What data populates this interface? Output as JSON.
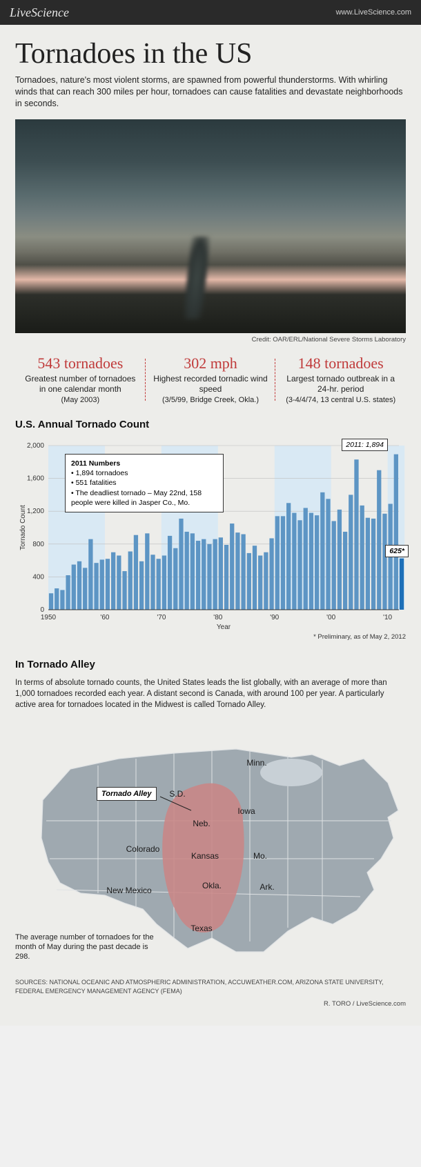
{
  "header": {
    "logo": "LiveScience",
    "url": "www.LiveScience.com"
  },
  "title": "Tornadoes in the US",
  "lede": "Tornadoes, nature's most violent storms, are spawned from powerful thunderstorms. With whirling winds that can reach 300 miles per hour, tornadoes can cause fatalities and devastate neighborhoods in seconds.",
  "hero_credit": "Credit: OAR/ERL/National Severe Storms Laboratory",
  "stats": [
    {
      "value": "543 tornadoes",
      "label": "Greatest number of tornadoes in one calendar month",
      "sub": "(May 2003)"
    },
    {
      "value": "302 mph",
      "label": "Highest recorded tornadic wind speed",
      "sub": "(3/5/99, Bridge Creek, Okla.)"
    },
    {
      "value": "148 tornadoes",
      "label": "Largest tornado outbreak in a 24-hr. period",
      "sub": "(3-4/4/74, 13 central U.S. states)"
    }
  ],
  "chart": {
    "title": "U.S. Annual Tornado Count",
    "ylabel": "Tornado Count",
    "xlabel": "Year",
    "xlim": [
      1950,
      2012
    ],
    "ylim": [
      0,
      2000
    ],
    "ytick_step": 400,
    "xtick_labels": [
      "1950",
      "'60",
      "'70",
      "'80",
      "'90",
      "'00",
      "'10"
    ],
    "xtick_years": [
      1950,
      1960,
      1970,
      1980,
      1990,
      2000,
      2010
    ],
    "band_color": "#d9e9f4",
    "bar_color": "#5d95c4",
    "highlight_color": "#1d6fb8",
    "grid_color": "#bdbdbd",
    "bg": "#ededea",
    "values": [
      200,
      260,
      240,
      420,
      550,
      590,
      510,
      860,
      570,
      610,
      620,
      700,
      660,
      470,
      710,
      910,
      590,
      930,
      670,
      620,
      660,
      900,
      750,
      1110,
      950,
      930,
      840,
      860,
      800,
      860,
      880,
      790,
      1050,
      940,
      920,
      690,
      780,
      660,
      700,
      870,
      1140,
      1140,
      1300,
      1180,
      1090,
      1240,
      1180,
      1150,
      1430,
      1350,
      1080,
      1220,
      950,
      1400,
      1830,
      1270,
      1120,
      1110,
      1700,
      1170,
      1290,
      1894,
      625
    ],
    "highlight_index": 62,
    "note": "* Preliminary, as of May 2, 2012",
    "callout_box": {
      "title": "2011 Numbers",
      "bullets": [
        "1,894 tornadoes",
        "551 fatalities",
        "The deadliest tornado – May 22nd, 158 people were killed in Jasper Co., Mo."
      ]
    },
    "callout_2011": "2011: 1,894",
    "callout_625": "625*"
  },
  "alley": {
    "title": "In Tornado Alley",
    "text": "In terms of absolute tornado counts, the United States leads the list globally, with an average of more than 1,000 tornadoes recorded each year. A distant second is Canada, with around 100 per year. A particularly active area for tornadoes located in the Midwest is called Tornado Alley.",
    "label": "Tornado Alley",
    "caption": "The average number of tornadoes for the month of May during the past decade is 298.",
    "state_labels": [
      "Minn.",
      "S.D.",
      "Iowa",
      "Neb.",
      "Colorado",
      "Kansas",
      "Mo.",
      "Okla.",
      "Ark.",
      "New Mexico",
      "Texas"
    ],
    "map_fill": "#9fa9b0",
    "map_stroke": "#dfe2e4",
    "alley_fill": "#c98585",
    "lake_fill": "#c8d0d6"
  },
  "sources": "SOURCES: NATIONAL OCEANIC AND ATMOSPHERIC ADMINISTRATION, ACCUWEATHER.COM, ARIZONA STATE UNIVERSITY, FEDERAL EMERGENCY MANAGEMENT AGENCY (FEMA)",
  "byline": "R. TORO / LiveScience.com"
}
